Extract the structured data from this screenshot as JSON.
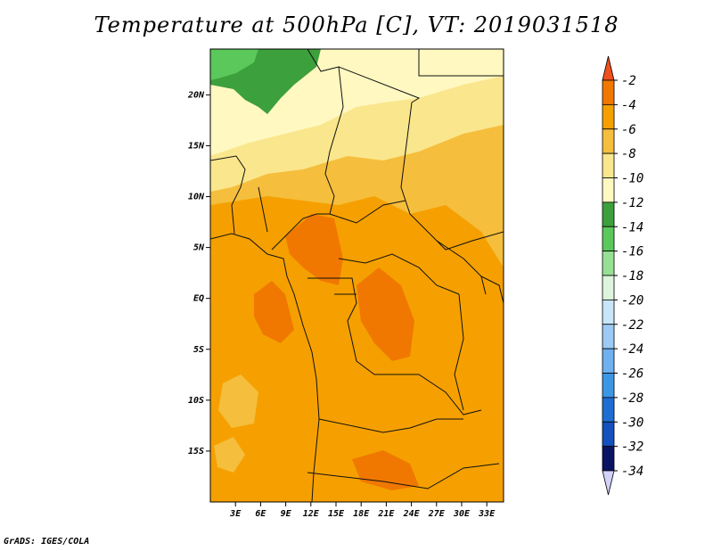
{
  "title": "Temperature at 500hPa [C], VT: 2019031518",
  "credit": "GrADS: IGES/COLA",
  "map": {
    "lon_range": [
      0,
      35
    ],
    "lat_range": [
      -20,
      24.5
    ],
    "lat_ticks": [
      {
        "value": 20,
        "label": "20N"
      },
      {
        "value": 15,
        "label": "15N"
      },
      {
        "value": 10,
        "label": "10N"
      },
      {
        "value": 5,
        "label": "5N"
      },
      {
        "value": 0,
        "label": "EQ"
      },
      {
        "value": -5,
        "label": "5S"
      },
      {
        "value": -10,
        "label": "10S"
      },
      {
        "value": -15,
        "label": "15S"
      }
    ],
    "lon_ticks": [
      {
        "value": 3,
        "label": "3E"
      },
      {
        "value": 6,
        "label": "6E"
      },
      {
        "value": 9,
        "label": "9E"
      },
      {
        "value": 12,
        "label": "12E"
      },
      {
        "value": 15,
        "label": "15E"
      },
      {
        "value": 18,
        "label": "18E"
      },
      {
        "value": 21,
        "label": "21E"
      },
      {
        "value": 24,
        "label": "24E"
      },
      {
        "value": 27,
        "label": "27E"
      },
      {
        "value": 30,
        "label": "30E"
      },
      {
        "value": 33,
        "label": "33E"
      }
    ]
  },
  "colorbar": {
    "labels": [
      "-2",
      "-4",
      "-6",
      "-8",
      "-10",
      "-12",
      "-14",
      "-16",
      "-18",
      "-20",
      "-22",
      "-24",
      "-26",
      "-28",
      "-30",
      "-32",
      "-34"
    ],
    "colors": [
      "#f0501e",
      "#f07800",
      "#f5a000",
      "#f5be3c",
      "#fae68c",
      "#fff8c0",
      "#3ca03c",
      "#5ac85a",
      "#96e096",
      "#dcf5dc",
      "#c8e6fa",
      "#9ccaf5",
      "#6eb0f0",
      "#3c96e6",
      "#1e6ed2",
      "#1450be",
      "#0a1464",
      "#d2d2fa"
    ]
  }
}
